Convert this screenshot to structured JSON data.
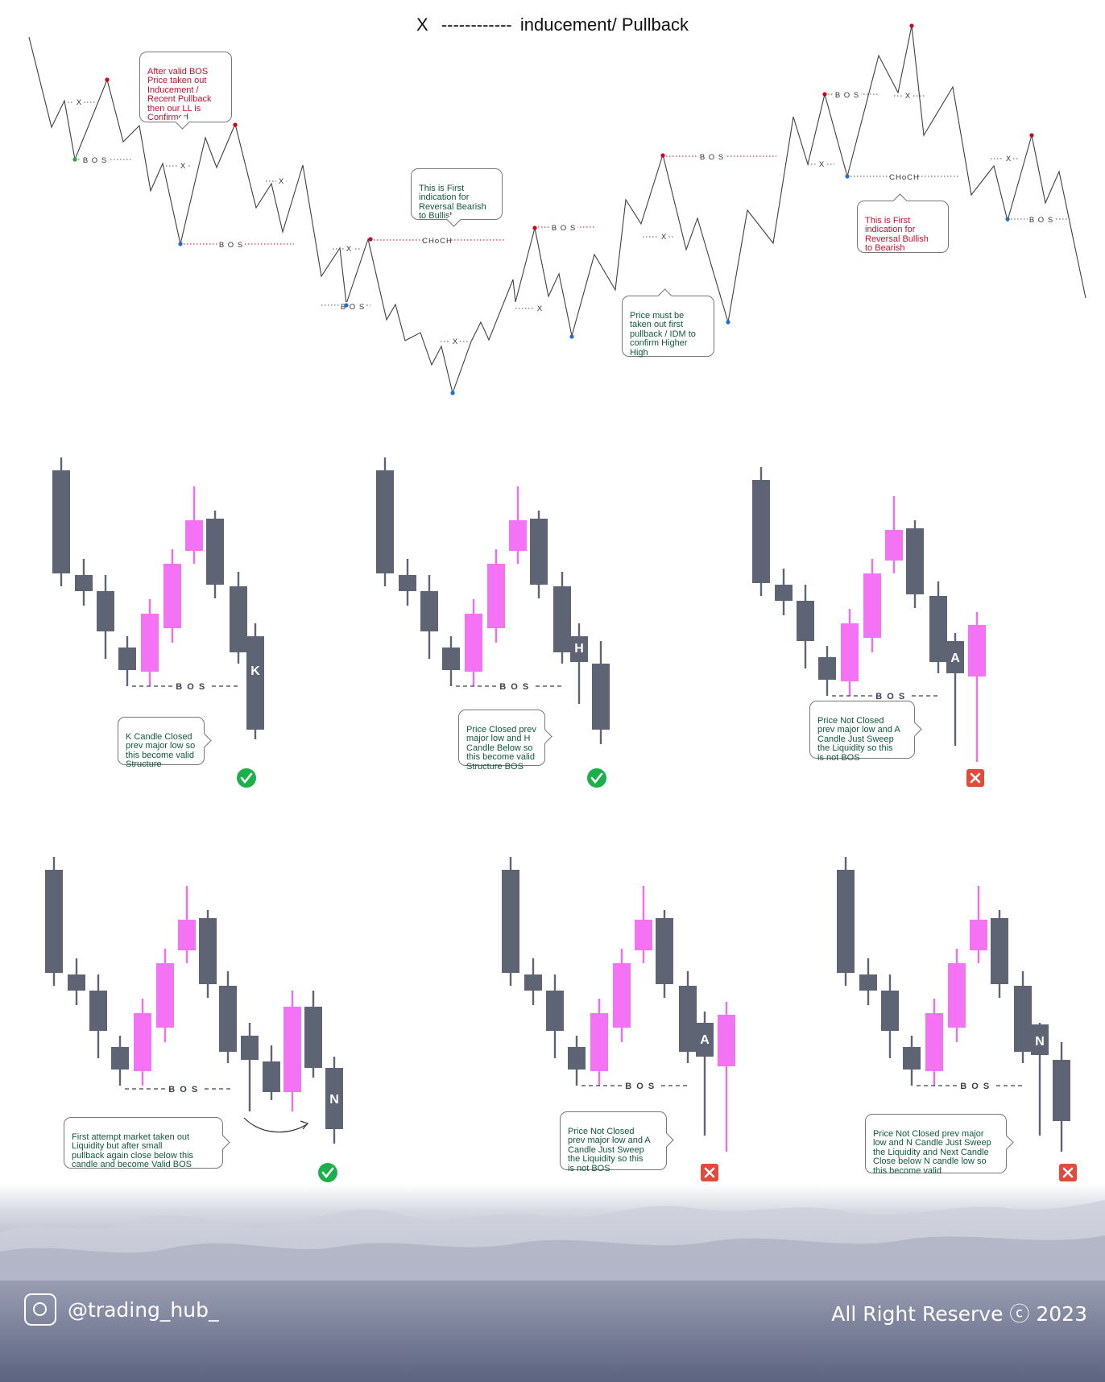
{
  "legend": {
    "symbol": "X",
    "dashes": "------------",
    "text": "inducement/ Pullback"
  },
  "colors": {
    "bear_candle": "#5f6475",
    "bull_candle": "#f472f4",
    "bull_wick": "#f06cf0",
    "bos_text": "#3a3f52",
    "swing_high_dot": "#d0021b",
    "swing_low_dot": "#1e6fd0",
    "start_dot": "#21a93a",
    "bubble_red": "#c8102e",
    "bubble_green": "#0f5a3a",
    "check_green": "#1bb04a",
    "cross_red": "#e24a3b"
  },
  "structure": {
    "labels": {
      "bos": "B O S",
      "x": "X",
      "choch": "CHoCH"
    },
    "bubbles": {
      "after_bos": "After  valid BOS\nPrice taken out\nInducement /\nRecent Pullback\nthen our LL is\nConfirmed",
      "reversal_bullish": "This is First\nindication for\nReversal Bearish\nto Bullish",
      "price_must": "Price must be\ntaken out first\npullback / IDM to\nconfirm Higher\nHigh",
      "reversal_bearish": "This is First\nindication for\nReversal Bullish\nto Bearish"
    }
  },
  "examples": [
    {
      "letter": "K",
      "bos_label": "B O S",
      "verdict": "valid",
      "verdict_icon": "check-icon",
      "note": "K Candle Closed\nprev major low so\nthis become valid\nStructure"
    },
    {
      "letter": "H",
      "bos_label": "B O S",
      "verdict": "valid",
      "verdict_icon": "check-icon",
      "note": "Price Closed prev\nmajor low and H\nCandle Below so\nthis become valid\nStructure BOS"
    },
    {
      "letter": "A",
      "bos_label": "B O S",
      "verdict": "invalid",
      "verdict_icon": "cross-icon",
      "note": "Price Not Closed\nprev major low and A\nCandle Just Sweep\nthe Liquidity so this\nis not BOS"
    },
    {
      "letter": "N",
      "bos_label": "B O S",
      "verdict": "valid",
      "verdict_icon": "check-icon",
      "note": "First attempt market taken out\nLiquidity  but after small\npullback again close below this\ncandle and become Valid BOS"
    },
    {
      "letter": "A",
      "bos_label": "B O S",
      "verdict": "invalid",
      "verdict_icon": "cross-icon",
      "note": "Price Not Closed\nprev major low and A\nCandle Just Sweep\nthe Liquidity so this\nis not BOS"
    },
    {
      "letter": "N",
      "bos_label": "B O S",
      "verdict": "invalid",
      "verdict_icon": "cross-icon",
      "note": "Price Not Closed prev major\nlow and N Candle Just Sweep\nthe Liquidity and Next Candle\nClose below N candle low so\nthis become valid"
    }
  ],
  "footer": {
    "handle": "@trading_hub_",
    "copyright": "All Right Reserve ⓒ 2023",
    "icon": "instagram-icon"
  }
}
